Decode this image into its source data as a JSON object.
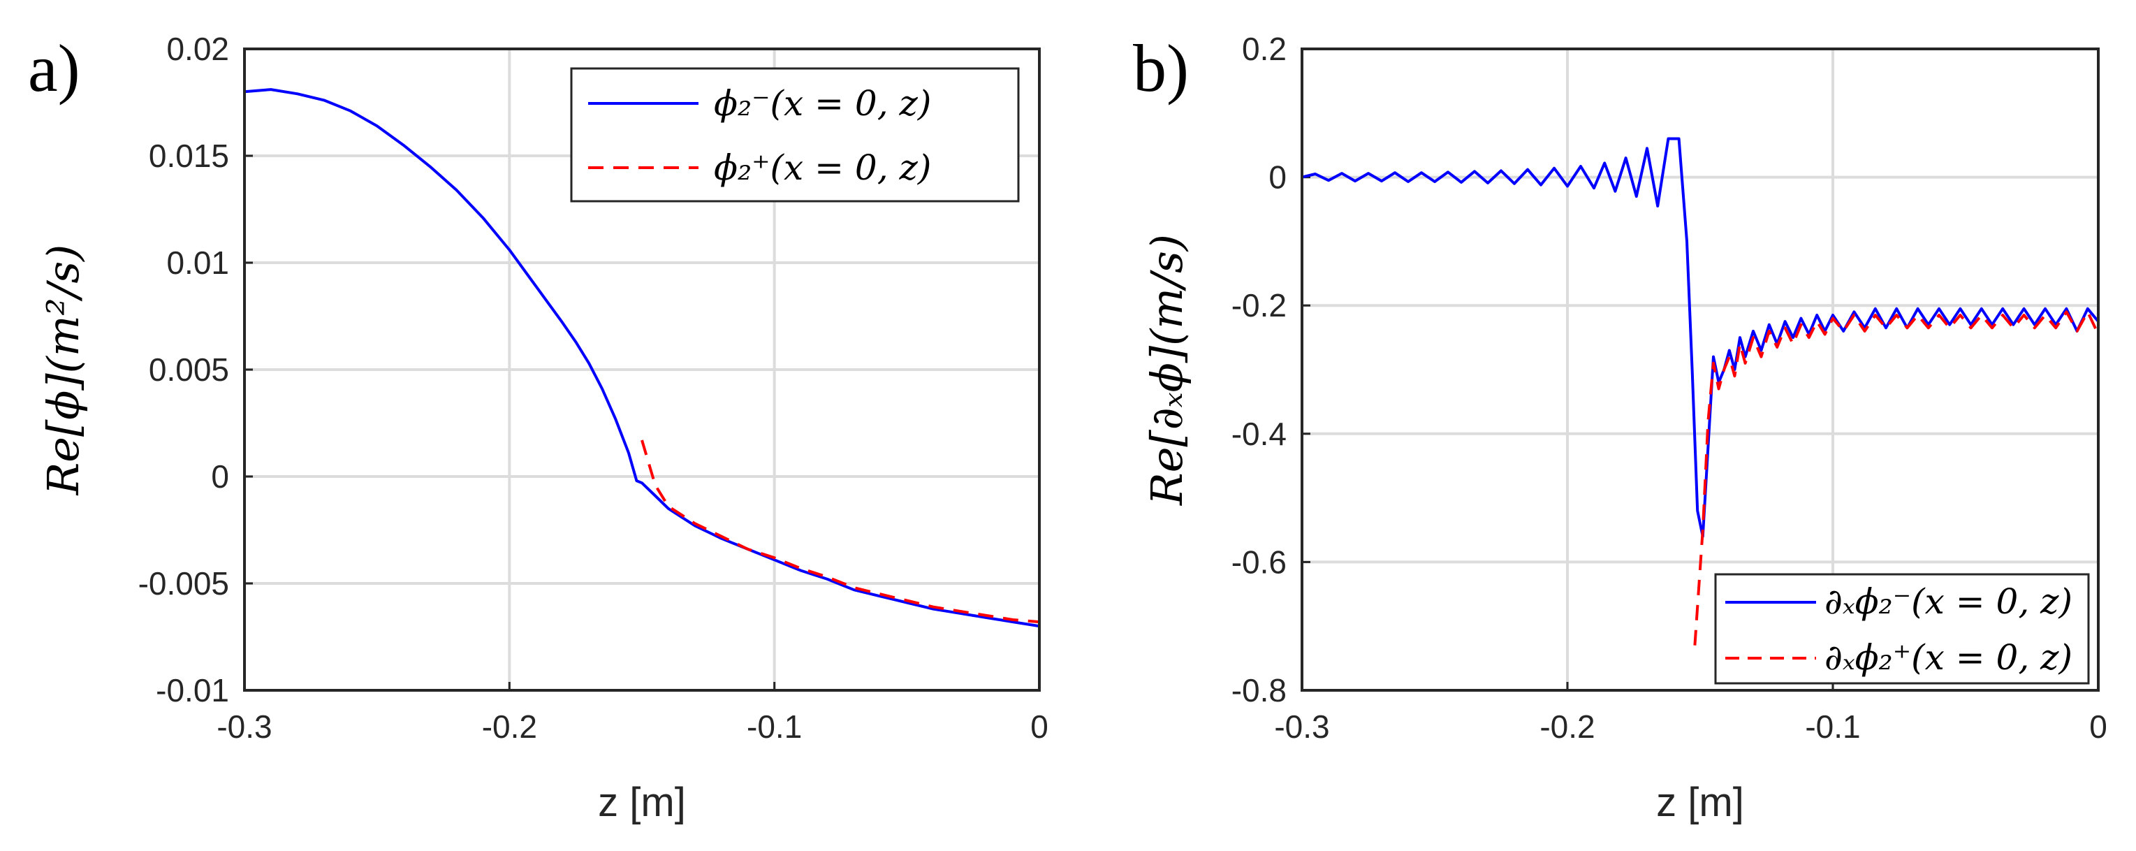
{
  "chart_data": [
    {
      "type": "line",
      "panel_label": "a)",
      "xlabel": "z [m]",
      "ylabel": "Re[ϕ](m²/s)",
      "xlim": [
        -0.3,
        0
      ],
      "ylim": [
        -0.01,
        0.02
      ],
      "xticks": [
        -0.3,
        -0.2,
        -0.1,
        0
      ],
      "xtick_labels": [
        "-0.3",
        "-0.2",
        "-0.1",
        "0"
      ],
      "yticks": [
        -0.01,
        -0.005,
        0,
        0.005,
        0.01,
        0.015,
        0.02
      ],
      "ytick_labels": [
        "-0.01",
        "-0.005",
        "0",
        "0.005",
        "0.01",
        "0.015",
        "0.02"
      ],
      "grid": true,
      "legend_position": "top-right",
      "series": [
        {
          "name": "ϕ₂⁻(x = 0, z)",
          "color": "#0000ff",
          "style": "solid",
          "x": [
            -0.3,
            -0.29,
            -0.28,
            -0.27,
            -0.26,
            -0.25,
            -0.24,
            -0.23,
            -0.22,
            -0.21,
            -0.2,
            -0.19,
            -0.18,
            -0.175,
            -0.17,
            -0.165,
            -0.16,
            -0.155,
            -0.152,
            -0.15,
            -0.145,
            -0.14,
            -0.13,
            -0.12,
            -0.11,
            -0.1,
            -0.09,
            -0.08,
            -0.07,
            -0.06,
            -0.05,
            -0.04,
            -0.03,
            -0.02,
            -0.01,
            0
          ],
          "y": [
            0.018,
            0.0181,
            0.0179,
            0.0176,
            0.0171,
            0.0164,
            0.0155,
            0.0145,
            0.0134,
            0.0121,
            0.0106,
            0.0089,
            0.0072,
            0.0063,
            0.0053,
            0.0041,
            0.0027,
            0.0011,
            -0.0002,
            -0.0003,
            -0.0009,
            -0.0015,
            -0.0023,
            -0.0029,
            -0.0034,
            -0.0039,
            -0.0044,
            -0.0048,
            -0.0053,
            -0.0056,
            -0.0059,
            -0.0062,
            -0.0064,
            -0.0066,
            -0.0068,
            -0.007
          ]
        },
        {
          "name": "ϕ₂⁺(x = 0, z)",
          "color": "#ff0000",
          "style": "dashed",
          "x": [
            -0.15,
            -0.145,
            -0.14,
            -0.13,
            -0.12,
            -0.11,
            -0.1,
            -0.09,
            -0.08,
            -0.07,
            -0.06,
            -0.05,
            -0.04,
            -0.03,
            -0.02,
            -0.01,
            0
          ],
          "y": [
            0.0017,
            -0.0004,
            -0.0014,
            -0.0022,
            -0.0028,
            -0.0034,
            -0.0038,
            -0.0043,
            -0.0047,
            -0.0052,
            -0.0055,
            -0.0058,
            -0.0061,
            -0.0063,
            -0.0065,
            -0.0067,
            -0.0068
          ]
        }
      ]
    },
    {
      "type": "line",
      "panel_label": "b)",
      "xlabel": "z [m]",
      "ylabel": "Re[∂ₓϕ](m/s)",
      "xlim": [
        -0.3,
        0
      ],
      "ylim": [
        -0.8,
        0.2
      ],
      "xticks": [
        -0.3,
        -0.2,
        -0.1,
        0
      ],
      "xtick_labels": [
        "-0.3",
        "-0.2",
        "-0.1",
        "0"
      ],
      "yticks": [
        -0.8,
        -0.6,
        -0.4,
        -0.2,
        0,
        0.2
      ],
      "ytick_labels": [
        "-0.8",
        "-0.6",
        "-0.4",
        "-0.2",
        "0",
        "0.2"
      ],
      "grid": true,
      "legend_position": "bottom-right",
      "series": [
        {
          "name": "∂ₓϕ₂⁻(x = 0, z)",
          "color": "#0000ff",
          "style": "solid",
          "x": [
            -0.3,
            -0.295,
            -0.29,
            -0.285,
            -0.28,
            -0.275,
            -0.27,
            -0.265,
            -0.26,
            -0.255,
            -0.25,
            -0.245,
            -0.24,
            -0.235,
            -0.23,
            -0.225,
            -0.22,
            -0.215,
            -0.21,
            -0.205,
            -0.2,
            -0.195,
            -0.19,
            -0.186,
            -0.182,
            -0.178,
            -0.174,
            -0.17,
            -0.166,
            -0.162,
            -0.158,
            -0.155,
            -0.153,
            -0.151,
            -0.149,
            -0.147,
            -0.145,
            -0.143,
            -0.141,
            -0.139,
            -0.137,
            -0.135,
            -0.133,
            -0.13,
            -0.127,
            -0.124,
            -0.121,
            -0.118,
            -0.115,
            -0.112,
            -0.109,
            -0.106,
            -0.103,
            -0.1,
            -0.096,
            -0.092,
            -0.088,
            -0.084,
            -0.08,
            -0.076,
            -0.072,
            -0.068,
            -0.064,
            -0.06,
            -0.056,
            -0.052,
            -0.048,
            -0.044,
            -0.04,
            -0.036,
            -0.032,
            -0.028,
            -0.024,
            -0.02,
            -0.016,
            -0.012,
            -0.008,
            -0.004,
            0
          ],
          "y": [
            0.0,
            0.005,
            -0.005,
            0.006,
            -0.006,
            0.006,
            -0.006,
            0.007,
            -0.007,
            0.007,
            -0.007,
            0.008,
            -0.008,
            0.009,
            -0.009,
            0.01,
            -0.01,
            0.012,
            -0.012,
            0.014,
            -0.014,
            0.017,
            -0.017,
            0.022,
            -0.022,
            0.03,
            -0.03,
            0.045,
            -0.045,
            0.06,
            0.06,
            -0.1,
            -0.3,
            -0.52,
            -0.56,
            -0.42,
            -0.28,
            -0.32,
            -0.3,
            -0.27,
            -0.3,
            -0.25,
            -0.28,
            -0.24,
            -0.27,
            -0.23,
            -0.26,
            -0.225,
            -0.25,
            -0.22,
            -0.245,
            -0.215,
            -0.24,
            -0.215,
            -0.24,
            -0.21,
            -0.235,
            -0.205,
            -0.235,
            -0.205,
            -0.235,
            -0.205,
            -0.23,
            -0.205,
            -0.23,
            -0.205,
            -0.23,
            -0.205,
            -0.23,
            -0.205,
            -0.23,
            -0.205,
            -0.23,
            -0.205,
            -0.23,
            -0.205,
            -0.24,
            -0.205,
            -0.225
          ]
        },
        {
          "name": "∂ₓϕ₂⁺(x = 0, z)",
          "color": "#ff0000",
          "style": "dashed",
          "x": [
            -0.152,
            -0.149,
            -0.147,
            -0.145,
            -0.143,
            -0.141,
            -0.139,
            -0.137,
            -0.135,
            -0.133,
            -0.13,
            -0.127,
            -0.124,
            -0.121,
            -0.118,
            -0.115,
            -0.112,
            -0.109,
            -0.106,
            -0.103,
            -0.1,
            -0.096,
            -0.092,
            -0.088,
            -0.084,
            -0.08,
            -0.076,
            -0.072,
            -0.068,
            -0.064,
            -0.06,
            -0.056,
            -0.052,
            -0.048,
            -0.044,
            -0.04,
            -0.036,
            -0.032,
            -0.028,
            -0.024,
            -0.02,
            -0.016,
            -0.012,
            -0.008,
            -0.004,
            0
          ],
          "y": [
            -0.73,
            -0.55,
            -0.38,
            -0.29,
            -0.33,
            -0.3,
            -0.28,
            -0.31,
            -0.26,
            -0.29,
            -0.25,
            -0.28,
            -0.24,
            -0.265,
            -0.235,
            -0.26,
            -0.23,
            -0.25,
            -0.225,
            -0.245,
            -0.22,
            -0.24,
            -0.215,
            -0.24,
            -0.215,
            -0.235,
            -0.215,
            -0.235,
            -0.215,
            -0.235,
            -0.215,
            -0.235,
            -0.215,
            -0.235,
            -0.215,
            -0.235,
            -0.215,
            -0.235,
            -0.215,
            -0.235,
            -0.215,
            -0.235,
            -0.21,
            -0.24,
            -0.21,
            -0.245
          ]
        }
      ]
    }
  ]
}
